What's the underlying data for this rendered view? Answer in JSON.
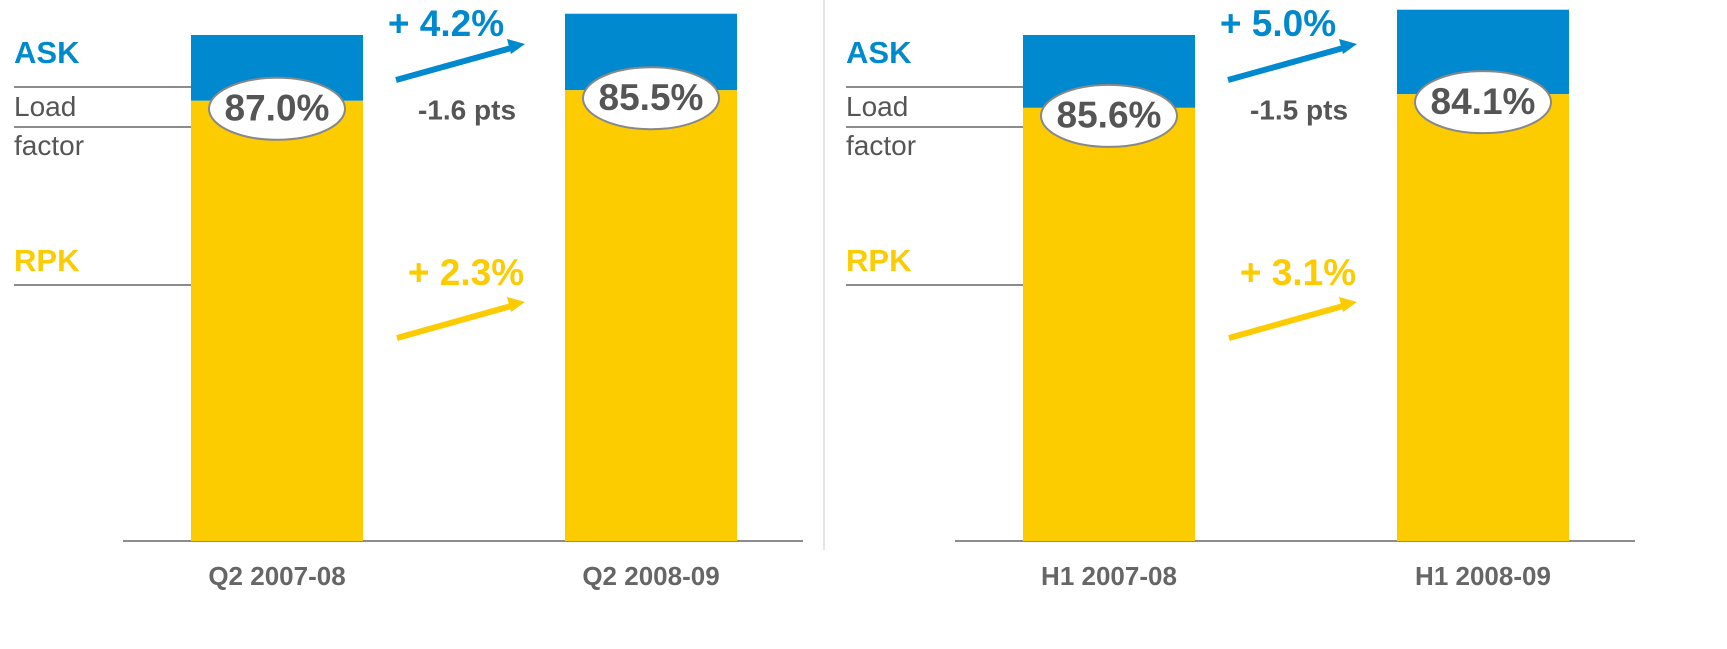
{
  "chart_data": [
    {
      "type": "stacked-bar",
      "categories": [
        "Q2 2007-08",
        "Q2 2008-09"
      ],
      "legend": {
        "ask": "ASK",
        "load_factor": "Load factor",
        "rpk": "RPK"
      },
      "load_factors": [
        87.0,
        85.5
      ],
      "value_labels": [
        "87.0%",
        "85.5%"
      ],
      "ask_growth": {
        "value": 4.2,
        "label": "+ 4.2%"
      },
      "rpk_growth": {
        "value": 2.3,
        "label": "+ 2.3%"
      },
      "lf_change": {
        "value": -1.6,
        "label": "-1.6 pts"
      },
      "ask_color": "#0089cf",
      "rpk_color": "#fccb00"
    },
    {
      "type": "stacked-bar",
      "categories": [
        "H1 2007-08",
        "H1 2008-09"
      ],
      "legend": {
        "ask": "ASK",
        "load_factor": "Load factor",
        "rpk": "RPK"
      },
      "load_factors": [
        85.6,
        84.1
      ],
      "value_labels": [
        "85.6%",
        "84.1%"
      ],
      "ask_growth": {
        "value": 5.0,
        "label": "+ 5.0%"
      },
      "rpk_growth": {
        "value": 3.1,
        "label": "+ 3.1%"
      },
      "lf_change": {
        "value": -1.5,
        "label": "-1.5 pts"
      },
      "ask_color": "#0089cf",
      "rpk_color": "#fccb00"
    }
  ]
}
